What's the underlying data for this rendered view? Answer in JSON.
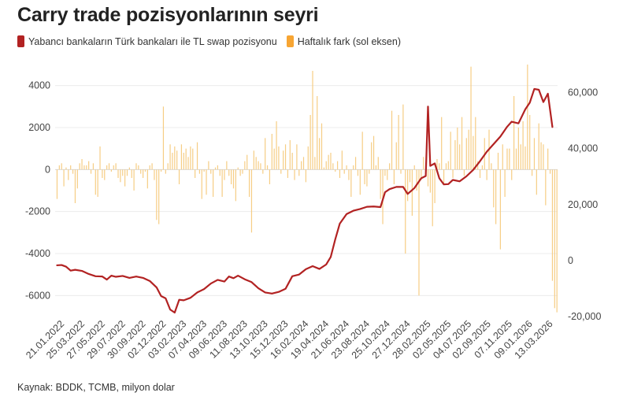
{
  "title": "Carry trade pozisyonlarının seyri",
  "source": "Kaynak: BDDK, TCMB, milyon dolar",
  "chart_data": {
    "type": "bar+line",
    "legend_position": "top-left",
    "grid": true,
    "colors": {
      "line": "#b22222",
      "bar": "#f6cd84",
      "swatch_line": "#b22222",
      "swatch_bar": "#f7a533"
    },
    "left_axis": {
      "min": -7000,
      "max": 5000,
      "ticks": [
        -6000,
        -4000,
        -2000,
        0,
        2000,
        4000
      ],
      "tick_labels": [
        "-6000",
        "-4000",
        "-2000",
        "0",
        "2000",
        "4000"
      ]
    },
    "right_axis": {
      "min": -20000,
      "max": 70000,
      "ticks": [
        -20000,
        0,
        20000,
        40000,
        60000
      ],
      "tick_labels": [
        "-20,000",
        "0",
        "20,000",
        "40,000",
        "60,000"
      ]
    },
    "x_range": [
      "2022-01-01",
      "2026-04-05"
    ],
    "x_ticks": [
      "2022-01-21",
      "2022-03-25",
      "2022-05-27",
      "2022-07-29",
      "2022-09-30",
      "2022-12-02",
      "2023-02-03",
      "2023-04-07",
      "2023-06-09",
      "2023-08-11",
      "2023-10-13",
      "2023-12-15",
      "2024-02-16",
      "2024-04-19",
      "2024-06-21",
      "2024-08-23",
      "2024-10-25",
      "2024-12-27",
      "2025-02-28",
      "2025-05-02",
      "2025-07-04",
      "2025-09-02",
      "2025-11-07",
      "2026-01-09",
      "2026-03-13"
    ],
    "x_tick_labels": [
      "21.01.2022",
      "25.03.2022",
      "27.05.2022",
      "29.07.2022",
      "30.09.2022",
      "02.12.2022",
      "03.02.2023",
      "07.04.2023",
      "09.06.2023",
      "11.08.2023",
      "13.10.2023",
      "15.12.2023",
      "16.02.2024",
      "19.04.2024",
      "21.06.2024",
      "23.08.2024",
      "25.10.2024",
      "27.12.2024",
      "28.02.2025",
      "02.05.2025",
      "04.07.2025",
      "02.09.2025",
      "07.11.2025",
      "09.01.2026",
      "13.03.2026"
    ],
    "series": [
      {
        "name": "Yabancı bankaların Türk bankaları ile TL swap pozisyonu",
        "type": "line",
        "axis": "right",
        "points": [
          [
            "2022-01-07",
            -1700
          ],
          [
            "2022-01-21",
            -1600
          ],
          [
            "2022-02-04",
            -2200
          ],
          [
            "2022-02-18",
            -3600
          ],
          [
            "2022-03-04",
            -3300
          ],
          [
            "2022-03-25",
            -3700
          ],
          [
            "2022-04-15",
            -4800
          ],
          [
            "2022-05-06",
            -5600
          ],
          [
            "2022-05-27",
            -5700
          ],
          [
            "2022-06-10",
            -6800
          ],
          [
            "2022-06-24",
            -5400
          ],
          [
            "2022-07-08",
            -5800
          ],
          [
            "2022-07-29",
            -5500
          ],
          [
            "2022-08-19",
            -6200
          ],
          [
            "2022-09-09",
            -5700
          ],
          [
            "2022-09-30",
            -6200
          ],
          [
            "2022-10-21",
            -7300
          ],
          [
            "2022-11-11",
            -9600
          ],
          [
            "2022-11-25",
            -12700
          ],
          [
            "2022-12-09",
            -13500
          ],
          [
            "2022-12-23",
            -17500
          ],
          [
            "2023-01-06",
            -18600
          ],
          [
            "2023-01-20",
            -14000
          ],
          [
            "2023-02-03",
            -14200
          ],
          [
            "2023-02-24",
            -13300
          ],
          [
            "2023-03-17",
            -11400
          ],
          [
            "2023-04-07",
            -10200
          ],
          [
            "2023-04-28",
            -8200
          ],
          [
            "2023-05-19",
            -6900
          ],
          [
            "2023-06-09",
            -7500
          ],
          [
            "2023-06-23",
            -5700
          ],
          [
            "2023-07-07",
            -6300
          ],
          [
            "2023-07-21",
            -5400
          ],
          [
            "2023-08-11",
            -6700
          ],
          [
            "2023-09-01",
            -7700
          ],
          [
            "2023-09-22",
            -9900
          ],
          [
            "2023-10-13",
            -11400
          ],
          [
            "2023-11-03",
            -11800
          ],
          [
            "2023-11-24",
            -11200
          ],
          [
            "2023-12-15",
            -10100
          ],
          [
            "2024-01-05",
            -5600
          ],
          [
            "2024-01-26",
            -5000
          ],
          [
            "2024-02-16",
            -3100
          ],
          [
            "2024-03-08",
            -2000
          ],
          [
            "2024-03-29",
            -3000
          ],
          [
            "2024-04-19",
            -1400
          ],
          [
            "2024-05-03",
            1300
          ],
          [
            "2024-05-17",
            7600
          ],
          [
            "2024-05-31",
            13200
          ],
          [
            "2024-06-21",
            16600
          ],
          [
            "2024-07-12",
            17800
          ],
          [
            "2024-08-02",
            18400
          ],
          [
            "2024-08-23",
            19200
          ],
          [
            "2024-09-13",
            19300
          ],
          [
            "2024-10-04",
            19100
          ],
          [
            "2024-10-18",
            24400
          ],
          [
            "2024-11-01",
            25500
          ],
          [
            "2024-11-22",
            26300
          ],
          [
            "2024-12-13",
            26300
          ],
          [
            "2024-12-27",
            23800
          ],
          [
            "2025-01-17",
            25900
          ],
          [
            "2025-02-07",
            29400
          ],
          [
            "2025-02-21",
            30200
          ],
          [
            "2025-02-28",
            55000
          ],
          [
            "2025-03-07",
            33800
          ],
          [
            "2025-03-21",
            34700
          ],
          [
            "2025-04-04",
            29400
          ],
          [
            "2025-04-18",
            27200
          ],
          [
            "2025-05-02",
            27300
          ],
          [
            "2025-05-16",
            28800
          ],
          [
            "2025-06-06",
            28300
          ],
          [
            "2025-06-27",
            30100
          ],
          [
            "2025-07-18",
            32400
          ],
          [
            "2025-08-08",
            35500
          ],
          [
            "2025-08-29",
            38900
          ],
          [
            "2025-09-19",
            41600
          ],
          [
            "2025-10-10",
            44300
          ],
          [
            "2025-10-31",
            47800
          ],
          [
            "2025-11-14",
            49600
          ],
          [
            "2025-12-05",
            49000
          ],
          [
            "2025-12-26",
            54000
          ],
          [
            "2026-01-09",
            56400
          ],
          [
            "2026-01-23",
            61300
          ],
          [
            "2026-02-06",
            61000
          ],
          [
            "2026-02-20",
            56600
          ],
          [
            "2026-03-06",
            59600
          ],
          [
            "2026-03-20",
            47700
          ]
        ]
      },
      {
        "name": "Haftalık fark (sol eksen)",
        "type": "bar",
        "axis": "left",
        "values": [
          -1400,
          200,
          300,
          -800,
          100,
          -500,
          200,
          -200,
          -1600,
          -900,
          300,
          500,
          200,
          200,
          400,
          -200,
          300,
          -1200,
          -1300,
          1100,
          -400,
          -500,
          200,
          300,
          -100,
          200,
          300,
          -400,
          -600,
          -300,
          -800,
          -300,
          100,
          -400,
          -1000,
          300,
          200,
          -200,
          -400,
          -100,
          -900,
          200,
          300,
          -500,
          -2400,
          -2600,
          -100,
          3000,
          -200,
          300,
          1200,
          800,
          1100,
          900,
          -700,
          1200,
          800,
          1000,
          600,
          1100,
          1000,
          -400,
          1300,
          -200,
          -1400,
          -100,
          -1200,
          400,
          -200,
          -1300,
          100,
          200,
          -300,
          -1300,
          -500,
          400,
          -300,
          -700,
          -900,
          -1500,
          100,
          -300,
          -200,
          400,
          700,
          -1300,
          -3000,
          900,
          600,
          400,
          300,
          -200,
          1500,
          200,
          -700,
          1700,
          1000,
          2300,
          1100,
          -200,
          900,
          1200,
          -400,
          1400,
          800,
          -500,
          1200,
          -300,
          400,
          600,
          -600,
          1100,
          2600,
          4700,
          600,
          3500,
          1500,
          2200,
          100,
          400,
          700,
          800,
          300,
          -100,
          400,
          -400,
          900,
          -200,
          200,
          -500,
          -1300,
          200,
          600,
          -300,
          -1200,
          1800,
          -700,
          -800,
          -200,
          1300,
          1600,
          200,
          600,
          -1400,
          -2600,
          -300,
          -500,
          300,
          2800,
          -700,
          1300,
          2600,
          -200,
          3100,
          -4000,
          -1500,
          -600,
          -2200,
          200,
          -1000,
          -6000,
          -500,
          600,
          -200,
          -800,
          -1100,
          -2700,
          -1600,
          500,
          300,
          2500,
          -700,
          300,
          400,
          1800,
          -400,
          1400,
          2000,
          1200,
          2500,
          -300,
          1500,
          1900,
          4900,
          1600,
          2500,
          400,
          -400,
          200,
          1500,
          -500,
          1900,
          300,
          -1800,
          -2600,
          800,
          -3800,
          1200,
          -1300,
          1000,
          1000,
          -500,
          3500,
          1000,
          2000,
          1200,
          2300,
          1100,
          5000,
          2600,
          -300,
          1500,
          -1200,
          2200,
          1300,
          1200,
          -1700,
          1000,
          -200,
          -5300,
          -6600,
          -6800
        ]
      }
    ]
  }
}
